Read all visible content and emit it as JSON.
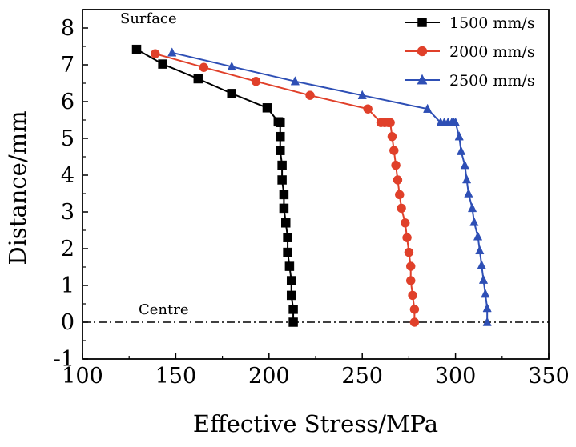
{
  "chart_data": {
    "type": "line",
    "xlabel": "Effective Stress/MPa",
    "ylabel": "Distance/mm",
    "xlim": [
      100,
      350
    ],
    "ylim": [
      -1,
      8.5
    ],
    "xticks": [
      100,
      150,
      200,
      250,
      300,
      350
    ],
    "yticks": [
      -1,
      0,
      1,
      2,
      3,
      4,
      5,
      6,
      7,
      8
    ],
    "grid": false,
    "legend_position": "top-right",
    "reference_line": {
      "y": 0,
      "style": "dash-dot"
    },
    "annotations": [
      {
        "text": "Surface",
        "x": 150,
        "y": 7.75
      },
      {
        "text": "Centre",
        "x": 172,
        "y": 0.25
      }
    ],
    "series": [
      {
        "name": "1500 mm/s",
        "color": "#000000",
        "marker": "square",
        "x": [
          213,
          213,
          212,
          212,
          211,
          210,
          210,
          209,
          208,
          208,
          207,
          207,
          206,
          206,
          206,
          205,
          205,
          199,
          180,
          162,
          143,
          129
        ],
        "y": [
          0.0,
          0.35,
          0.73,
          1.13,
          1.52,
          1.9,
          2.3,
          2.7,
          3.1,
          3.47,
          3.87,
          4.27,
          4.67,
          5.05,
          5.43,
          5.45,
          5.45,
          5.83,
          6.22,
          6.62,
          7.02,
          7.42
        ]
      },
      {
        "name": "2000 mm/s",
        "color": "#e0402a",
        "marker": "circle",
        "x": [
          278,
          278,
          277,
          276,
          276,
          275,
          274,
          273,
          271,
          270,
          269,
          268,
          267,
          266,
          265,
          264,
          262,
          260,
          253,
          222,
          193,
          165,
          139
        ],
        "y": [
          0.0,
          0.35,
          0.73,
          1.13,
          1.52,
          1.9,
          2.3,
          2.7,
          3.1,
          3.47,
          3.87,
          4.27,
          4.67,
          5.05,
          5.43,
          5.43,
          5.43,
          5.43,
          5.8,
          6.17,
          6.55,
          6.93,
          7.3
        ]
      },
      {
        "name": "2500 mm/s",
        "color": "#2e4fb5",
        "marker": "triangle",
        "x": [
          317,
          317,
          316,
          315,
          314,
          313,
          312,
          310,
          309,
          307,
          306,
          305,
          303,
          302,
          300,
          299,
          298,
          296,
          294,
          292,
          285,
          250,
          214,
          180,
          148
        ],
        "y": [
          0.0,
          0.38,
          0.77,
          1.15,
          1.55,
          1.95,
          2.33,
          2.72,
          3.1,
          3.5,
          3.88,
          4.27,
          4.65,
          5.05,
          5.43,
          5.43,
          5.43,
          5.43,
          5.43,
          5.43,
          5.8,
          6.17,
          6.55,
          6.95,
          7.33
        ]
      }
    ]
  }
}
